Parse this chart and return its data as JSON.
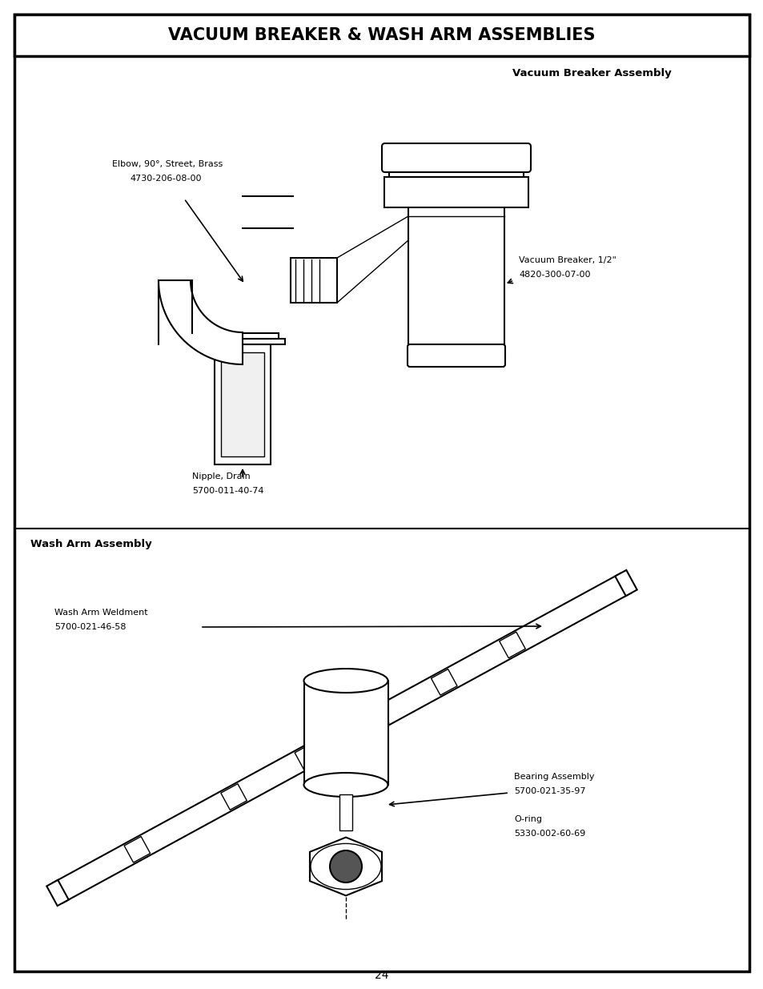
{
  "title": "VACUUM BREAKER & WASH ARM ASSEMBLIES",
  "page_number": "24",
  "background_color": "#ffffff",
  "section1_label": "Vacuum Breaker Assembly",
  "section2_label": "Wash Arm Assembly",
  "elbow_label1": "Elbow, 90°, Street, Brass",
  "elbow_label2": "4730-206-08-00",
  "vb_label1": "Vacuum Breaker, 1/2\"",
  "vb_label2": "4820-300-07-00",
  "nipple_label1": "Nipple, Drain",
  "nipple_label2": "5700-011-40-74",
  "waw_label1": "Wash Arm Weldment",
  "waw_label2": "5700-021-46-58",
  "bear_label1": "Bearing Assembly",
  "bear_label2": "5700-021-35-97",
  "oring_label1": "O-ring",
  "oring_label2": "5330-002-60-69"
}
